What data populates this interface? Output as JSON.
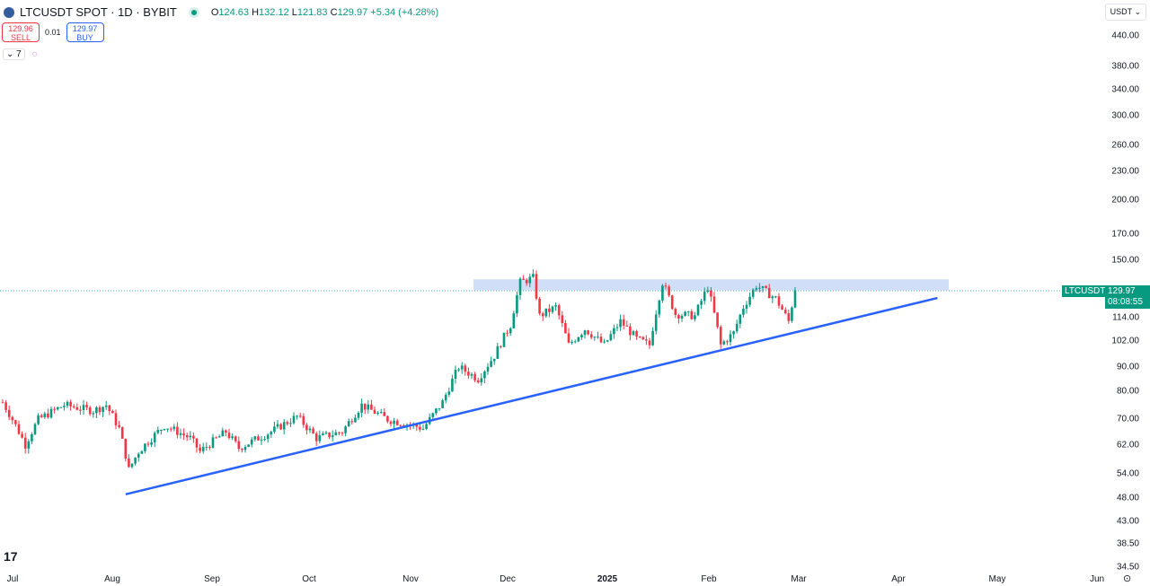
{
  "header": {
    "symbol": "LTCUSDT SPOT · 1D · BYBIT",
    "o_label": "O",
    "o": "124.63",
    "h_label": "H",
    "h": "132.12",
    "l_label": "L",
    "l": "121.83",
    "c_label": "C",
    "c": "129.97",
    "change": "+5.34 (+4.28%)"
  },
  "trade": {
    "sell_price": "129.96",
    "sell_label": "SELL",
    "spread": "0.01",
    "buy_price": "129.97",
    "buy_label": "BUY"
  },
  "indicators": {
    "count": "7"
  },
  "currency": "USDT",
  "price_tag": {
    "symbol": "LTCUSDT",
    "price": "129.97",
    "countdown": "08:08:55"
  },
  "logo": "TV",
  "colors": {
    "up": "#089981",
    "down": "#f23645",
    "trend": "#2962ff",
    "zone": "#c9d8f7"
  },
  "chart_data": {
    "type": "candlestick",
    "scale": "log",
    "y_ticks": [
      "440.00",
      "380.00",
      "340.00",
      "300.00",
      "260.00",
      "230.00",
      "200.00",
      "170.00",
      "150.00",
      "114.00",
      "102.00",
      "90.00",
      "80.00",
      "70.00",
      "62.00",
      "54.00",
      "48.00",
      "43.00",
      "38.50",
      "34.50"
    ],
    "x_ticks": [
      "Jul",
      "Aug",
      "Sep",
      "Oct",
      "Nov",
      "Dec",
      "2025",
      "Feb",
      "Mar",
      "Apr",
      "May",
      "Jun"
    ],
    "approx_closes_by_day": [
      [
        0,
        76
      ],
      [
        7,
        62
      ],
      [
        11,
        70
      ],
      [
        19,
        75
      ],
      [
        28,
        73
      ],
      [
        32,
        75
      ],
      [
        36,
        67
      ],
      [
        39,
        55
      ],
      [
        42,
        60
      ],
      [
        50,
        68
      ],
      [
        58,
        64
      ],
      [
        61,
        60
      ],
      [
        69,
        66
      ],
      [
        73,
        61
      ],
      [
        83,
        66
      ],
      [
        91,
        71
      ],
      [
        97,
        64
      ],
      [
        105,
        66
      ],
      [
        111,
        75
      ],
      [
        119,
        70
      ],
      [
        127,
        68
      ],
      [
        130,
        67
      ],
      [
        136,
        76
      ],
      [
        141,
        90
      ],
      [
        147,
        85
      ],
      [
        152,
        95
      ],
      [
        157,
        110
      ],
      [
        160,
        135
      ],
      [
        164,
        138
      ],
      [
        166,
        115
      ],
      [
        171,
        120
      ],
      [
        175,
        100
      ],
      [
        180,
        108
      ],
      [
        186,
        100
      ],
      [
        191,
        112
      ],
      [
        196,
        103
      ],
      [
        200,
        100
      ],
      [
        204,
        135
      ],
      [
        208,
        116
      ],
      [
        214,
        115
      ],
      [
        218,
        132
      ],
      [
        222,
        100
      ],
      [
        226,
        106
      ],
      [
        229,
        120
      ],
      [
        233,
        133
      ],
      [
        239,
        125
      ],
      [
        243,
        112
      ],
      [
        245,
        130
      ]
    ],
    "resistance_zone": [
      130,
      137
    ],
    "trendline": {
      "start": {
        "day": 38,
        "price": 48.9
      },
      "end": {
        "day": 289,
        "price": 125.3
      }
    },
    "last_price": 129.97
  }
}
